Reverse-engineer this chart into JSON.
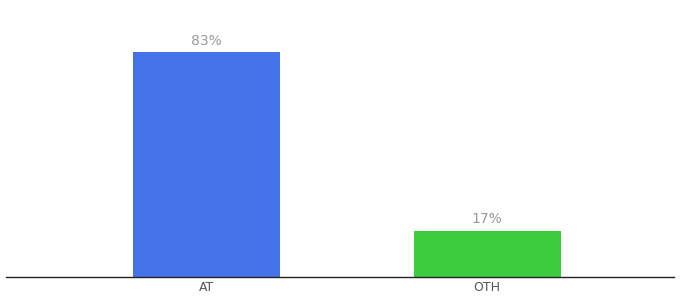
{
  "categories": [
    "AT",
    "OTH"
  ],
  "values": [
    83,
    17
  ],
  "bar_colors": [
    "#4472e8",
    "#3dcc3d"
  ],
  "label_texts": [
    "83%",
    "17%"
  ],
  "label_color": "#999999",
  "ylim": [
    0,
    100
  ],
  "background_color": "#ffffff",
  "bar_positions": [
    0.3,
    0.72
  ],
  "bar_width": 0.22,
  "label_fontsize": 10,
  "tick_fontsize": 9,
  "xlim": [
    0.0,
    1.0
  ]
}
